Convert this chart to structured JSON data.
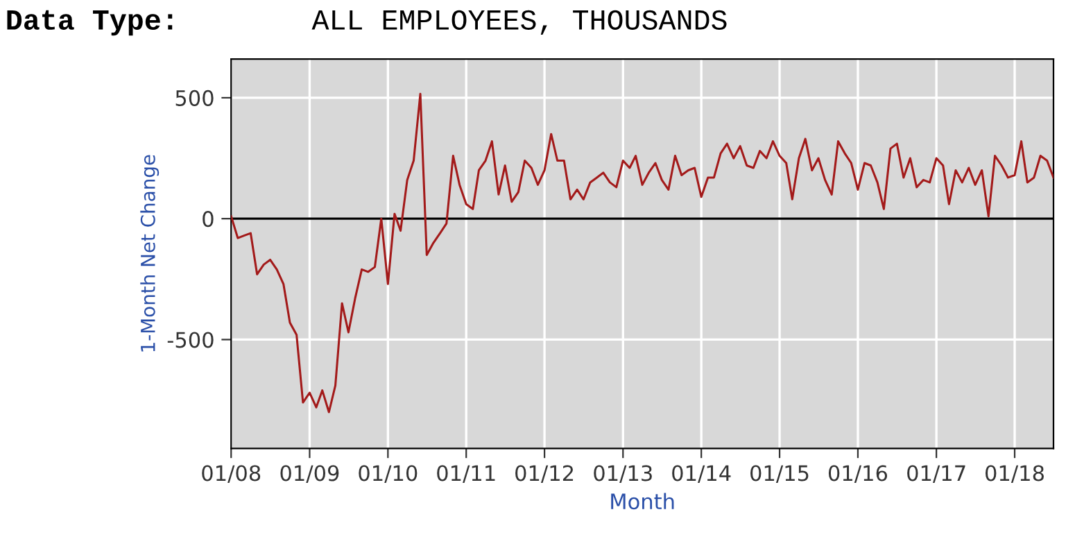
{
  "chart_data": {
    "type": "line",
    "title": "Data Type:",
    "subtitle": "ALL EMPLOYEES, THOUSANDS",
    "xlabel": "Month",
    "ylabel": "1-Month Net Change",
    "x": [
      "2008-01",
      "2008-02",
      "2008-03",
      "2008-04",
      "2008-05",
      "2008-06",
      "2008-07",
      "2008-08",
      "2008-09",
      "2008-10",
      "2008-11",
      "2008-12",
      "2009-01",
      "2009-02",
      "2009-03",
      "2009-04",
      "2009-05",
      "2009-06",
      "2009-07",
      "2009-08",
      "2009-09",
      "2009-10",
      "2009-11",
      "2009-12",
      "2010-01",
      "2010-02",
      "2010-03",
      "2010-04",
      "2010-05",
      "2010-06",
      "2010-07",
      "2010-08",
      "2010-09",
      "2010-10",
      "2010-11",
      "2010-12",
      "2011-01",
      "2011-02",
      "2011-03",
      "2011-04",
      "2011-05",
      "2011-06",
      "2011-07",
      "2011-08",
      "2011-09",
      "2011-10",
      "2011-11",
      "2011-12",
      "2012-01",
      "2012-02",
      "2012-03",
      "2012-04",
      "2012-05",
      "2012-06",
      "2012-07",
      "2012-08",
      "2012-09",
      "2012-10",
      "2012-11",
      "2012-12",
      "2013-01",
      "2013-02",
      "2013-03",
      "2013-04",
      "2013-05",
      "2013-06",
      "2013-07",
      "2013-08",
      "2013-09",
      "2013-10",
      "2013-11",
      "2013-12",
      "2014-01",
      "2014-02",
      "2014-03",
      "2014-04",
      "2014-05",
      "2014-06",
      "2014-07",
      "2014-08",
      "2014-09",
      "2014-10",
      "2014-11",
      "2014-12",
      "2015-01",
      "2015-02",
      "2015-03",
      "2015-04",
      "2015-05",
      "2015-06",
      "2015-07",
      "2015-08",
      "2015-09",
      "2015-10",
      "2015-11",
      "2015-12",
      "2016-01",
      "2016-02",
      "2016-03",
      "2016-04",
      "2016-05",
      "2016-06",
      "2016-07",
      "2016-08",
      "2016-09",
      "2016-10",
      "2016-11",
      "2016-12",
      "2017-01",
      "2017-02",
      "2017-03",
      "2017-04",
      "2017-05",
      "2017-06",
      "2017-07",
      "2017-08",
      "2017-09",
      "2017-10",
      "2017-11",
      "2017-12",
      "2018-01",
      "2018-02",
      "2018-03",
      "2018-04",
      "2018-05",
      "2018-06",
      "2018-07"
    ],
    "series": [
      {
        "color": "#a31a1a",
        "values": [
          10,
          -80,
          -70,
          -60,
          -230,
          -190,
          -170,
          -210,
          -270,
          -430,
          -480,
          -760,
          -720,
          -780,
          -710,
          -800,
          -690,
          -350,
          -470,
          -330,
          -210,
          -220,
          -200,
          0,
          -270,
          20,
          -50,
          160,
          240,
          516,
          -150,
          -100,
          -60,
          -20,
          260,
          140,
          60,
          40,
          200,
          240,
          320,
          100,
          220,
          70,
          110,
          240,
          210,
          140,
          200,
          350,
          240,
          240,
          80,
          120,
          80,
          150,
          170,
          190,
          150,
          130,
          240,
          210,
          260,
          140,
          190,
          230,
          160,
          120,
          260,
          180,
          200,
          210,
          90,
          170,
          170,
          270,
          310,
          250,
          300,
          220,
          210,
          280,
          250,
          320,
          260,
          230,
          80,
          250,
          330,
          200,
          250,
          160,
          100,
          320,
          270,
          230,
          120,
          230,
          220,
          150,
          40,
          290,
          310,
          170,
          250,
          130,
          160,
          150,
          250,
          220,
          60,
          200,
          150,
          210,
          140,
          200,
          10,
          260,
          220,
          170,
          180,
          320,
          150,
          170,
          260,
          240,
          170
        ]
      }
    ],
    "xlim": [
      "2008-01",
      "2018-07"
    ],
    "xticks": [
      {
        "value": "2008-01",
        "label": "01/08"
      },
      {
        "value": "2009-01",
        "label": "01/09"
      },
      {
        "value": "2010-01",
        "label": "01/10"
      },
      {
        "value": "2011-01",
        "label": "01/11"
      },
      {
        "value": "2012-01",
        "label": "01/12"
      },
      {
        "value": "2013-01",
        "label": "01/13"
      },
      {
        "value": "2014-01",
        "label": "01/14"
      },
      {
        "value": "2015-01",
        "label": "01/15"
      },
      {
        "value": "2016-01",
        "label": "01/16"
      },
      {
        "value": "2017-01",
        "label": "01/17"
      },
      {
        "value": "2018-01",
        "label": "01/18"
      }
    ],
    "ylim": [
      -950,
      660
    ],
    "yticks": [
      -500,
      0,
      500
    ],
    "ref_lines": [
      {
        "axis": "y",
        "value": 0,
        "label": null,
        "color": "#000000",
        "line_style": "solid"
      }
    ],
    "grid": true,
    "marker": "none",
    "line_style": "solid"
  }
}
